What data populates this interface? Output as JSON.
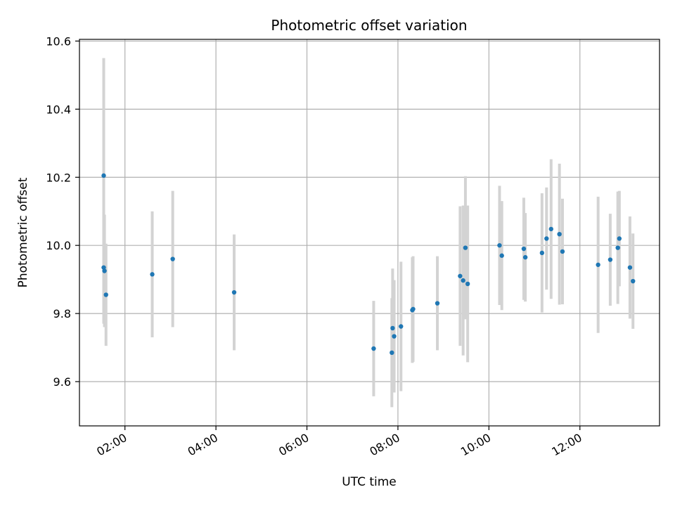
{
  "chart_data": {
    "type": "scatter",
    "title": "Photometric offset variation",
    "xlabel": "UTC time",
    "ylabel": "Photometric offset",
    "x_unit": "time of day (UTC, hours)",
    "xlim": [
      "01:00",
      "13:45"
    ],
    "ylim": [
      9.47,
      10.605
    ],
    "xticks": [
      "02:00",
      "04:00",
      "06:00",
      "08:00",
      "10:00",
      "12:00"
    ],
    "yticks": [
      "9.6",
      "9.8",
      "10.0",
      "10.2",
      "10.4",
      "10.6"
    ],
    "grid": true,
    "series": [
      {
        "marker_color": "#1f77b4",
        "errorbar_color": "#d3d3d3",
        "points": [
          {
            "x": "01:32",
            "y": 10.205,
            "err": 0.345
          },
          {
            "x": "01:32",
            "y": 9.935,
            "err": 0.165
          },
          {
            "x": "01:33",
            "y": 9.925,
            "err": 0.165
          },
          {
            "x": "01:35",
            "y": 9.855,
            "err": 0.15
          },
          {
            "x": "02:36",
            "y": 9.915,
            "err": 0.185
          },
          {
            "x": "03:03",
            "y": 9.96,
            "err": 0.2
          },
          {
            "x": "04:24",
            "y": 9.862,
            "err": 0.17
          },
          {
            "x": "07:28",
            "y": 9.697,
            "err": 0.14
          },
          {
            "x": "07:52",
            "y": 9.685,
            "err": 0.16
          },
          {
            "x": "07:53",
            "y": 9.757,
            "err": 0.175
          },
          {
            "x": "07:55",
            "y": 9.733,
            "err": 0.165
          },
          {
            "x": "08:04",
            "y": 9.762,
            "err": 0.19
          },
          {
            "x": "08:19",
            "y": 9.81,
            "err": 0.155
          },
          {
            "x": "08:20",
            "y": 9.813,
            "err": 0.155
          },
          {
            "x": "08:52",
            "y": 9.83,
            "err": 0.138
          },
          {
            "x": "09:22",
            "y": 9.91,
            "err": 0.205
          },
          {
            "x": "09:26",
            "y": 9.897,
            "err": 0.22
          },
          {
            "x": "09:29",
            "y": 9.993,
            "err": 0.21
          },
          {
            "x": "09:32",
            "y": 9.887,
            "err": 0.23
          },
          {
            "x": "10:14",
            "y": 10.0,
            "err": 0.175
          },
          {
            "x": "10:17",
            "y": 9.97,
            "err": 0.16
          },
          {
            "x": "10:46",
            "y": 9.99,
            "err": 0.15
          },
          {
            "x": "10:48",
            "y": 9.965,
            "err": 0.13
          },
          {
            "x": "11:10",
            "y": 9.978,
            "err": 0.175
          },
          {
            "x": "11:16",
            "y": 10.02,
            "err": 0.15
          },
          {
            "x": "11:22",
            "y": 10.048,
            "err": 0.205
          },
          {
            "x": "11:33",
            "y": 10.033,
            "err": 0.207
          },
          {
            "x": "11:37",
            "y": 9.982,
            "err": 0.155
          },
          {
            "x": "12:24",
            "y": 9.943,
            "err": 0.2
          },
          {
            "x": "12:40",
            "y": 9.958,
            "err": 0.135
          },
          {
            "x": "12:50",
            "y": 9.993,
            "err": 0.165
          },
          {
            "x": "12:52",
            "y": 10.02,
            "err": 0.14
          },
          {
            "x": "13:06",
            "y": 9.935,
            "err": 0.15
          },
          {
            "x": "13:10",
            "y": 9.895,
            "err": 0.14
          }
        ]
      }
    ]
  }
}
